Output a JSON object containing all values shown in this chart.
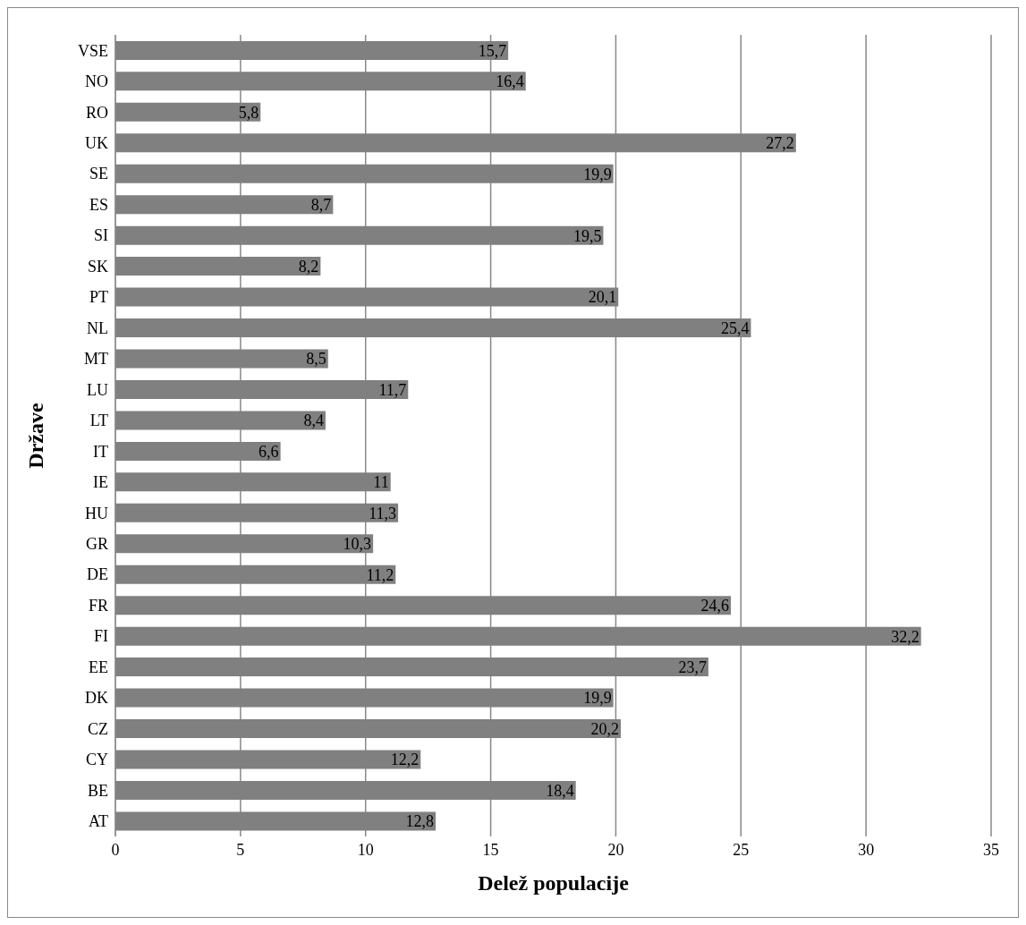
{
  "chart_data": {
    "type": "bar",
    "orientation": "horizontal",
    "xlabel": "Delež  populacije",
    "ylabel": "Države",
    "categories": [
      "VSE",
      "NO",
      "RO",
      "UK",
      "SE",
      "ES",
      "SI",
      "SK",
      "PT",
      "NL",
      "MT",
      "LU",
      "LT",
      "IT",
      "IE",
      "HU",
      "GR",
      "DE",
      "FR",
      "FI",
      "EE",
      "DK",
      "CZ",
      "CY",
      "BE",
      "AT"
    ],
    "values": [
      15.7,
      16.4,
      5.8,
      27.2,
      19.9,
      8.7,
      19.5,
      8.2,
      20.1,
      25.4,
      8.5,
      11.7,
      8.4,
      6.6,
      11,
      11.3,
      10.3,
      11.2,
      24.6,
      32.2,
      23.7,
      19.9,
      20.2,
      12.2,
      18.4,
      12.8
    ],
    "value_labels": [
      "15,7",
      "16,4",
      "5,8",
      "27,2",
      "19,9",
      "8,7",
      "19,5",
      "8,2",
      "20,1",
      "25,4",
      "8,5",
      "11,7",
      "8,4",
      "6,6",
      "11",
      "11,3",
      "10,3",
      "11,2",
      "24,6",
      "32,2",
      "23,7",
      "19,9",
      "20,2",
      "12,2",
      "18,4",
      "12,8"
    ],
    "color": "#808080",
    "xlim": [
      0,
      35
    ],
    "xticks": [
      0,
      5,
      10,
      15,
      20,
      25,
      30,
      35
    ],
    "grid": "x"
  }
}
